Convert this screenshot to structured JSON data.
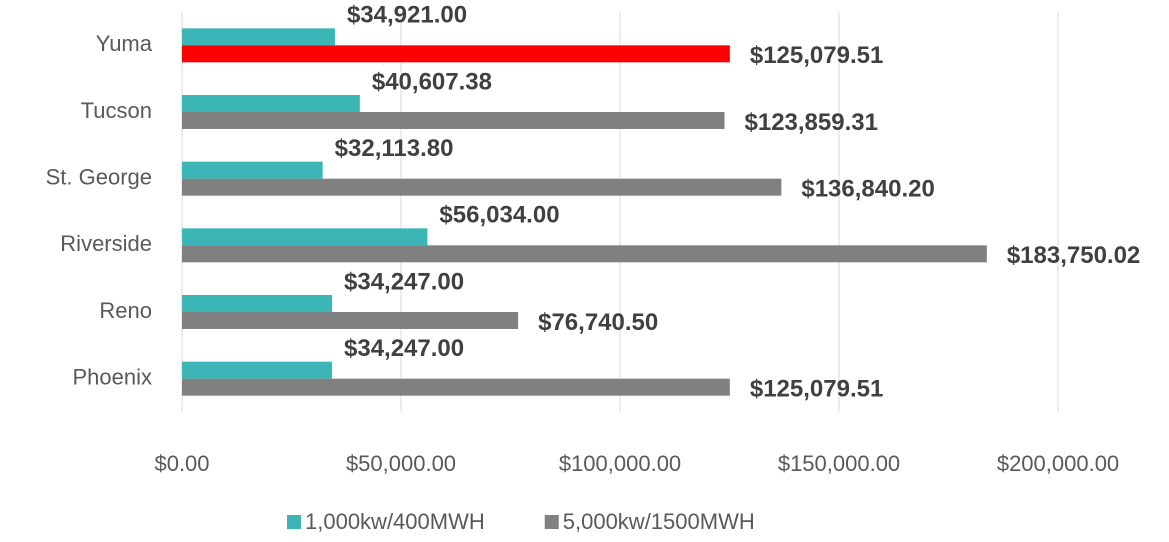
{
  "chart_data": {
    "type": "hbar",
    "categories": [
      "Yuma",
      "Tucson",
      "St. George",
      "Riverside",
      "Reno",
      "Phoenix"
    ],
    "series": [
      {
        "name": "1,000kw/400MWH",
        "color": "#3cb5b7",
        "values": [
          34921.0,
          40607.38,
          32113.8,
          56034.0,
          34247.0,
          34247.0
        ],
        "value_labels": [
          "$34,921.00",
          "$40,607.38",
          "$32,113.80",
          "$56,034.00",
          "$34,247.00",
          "$34,247.00"
        ]
      },
      {
        "name": "5,000kw/1500MWH",
        "color": "#808080",
        "colors": [
          "#ff0000",
          "#808080",
          "#808080",
          "#808080",
          "#808080",
          "#808080"
        ],
        "values": [
          125079.51,
          123859.31,
          136840.2,
          183750.02,
          76740.5,
          125079.51
        ],
        "value_labels": [
          "$125,079.51",
          "$123,859.31",
          "$136,840.20",
          "$183,750.02",
          "$76,740.50",
          "$125,079.51"
        ]
      }
    ],
    "xlim": [
      0,
      200000
    ],
    "xticks": [
      {
        "value": 0,
        "label": "$0.00"
      },
      {
        "value": 50000,
        "label": "$50,000.00"
      },
      {
        "value": 100000,
        "label": "$100,000.00"
      },
      {
        "value": 150000,
        "label": "$150,000.00"
      },
      {
        "value": 200000,
        "label": "$200,000.00"
      }
    ],
    "grid": true,
    "legend": "bottom"
  }
}
